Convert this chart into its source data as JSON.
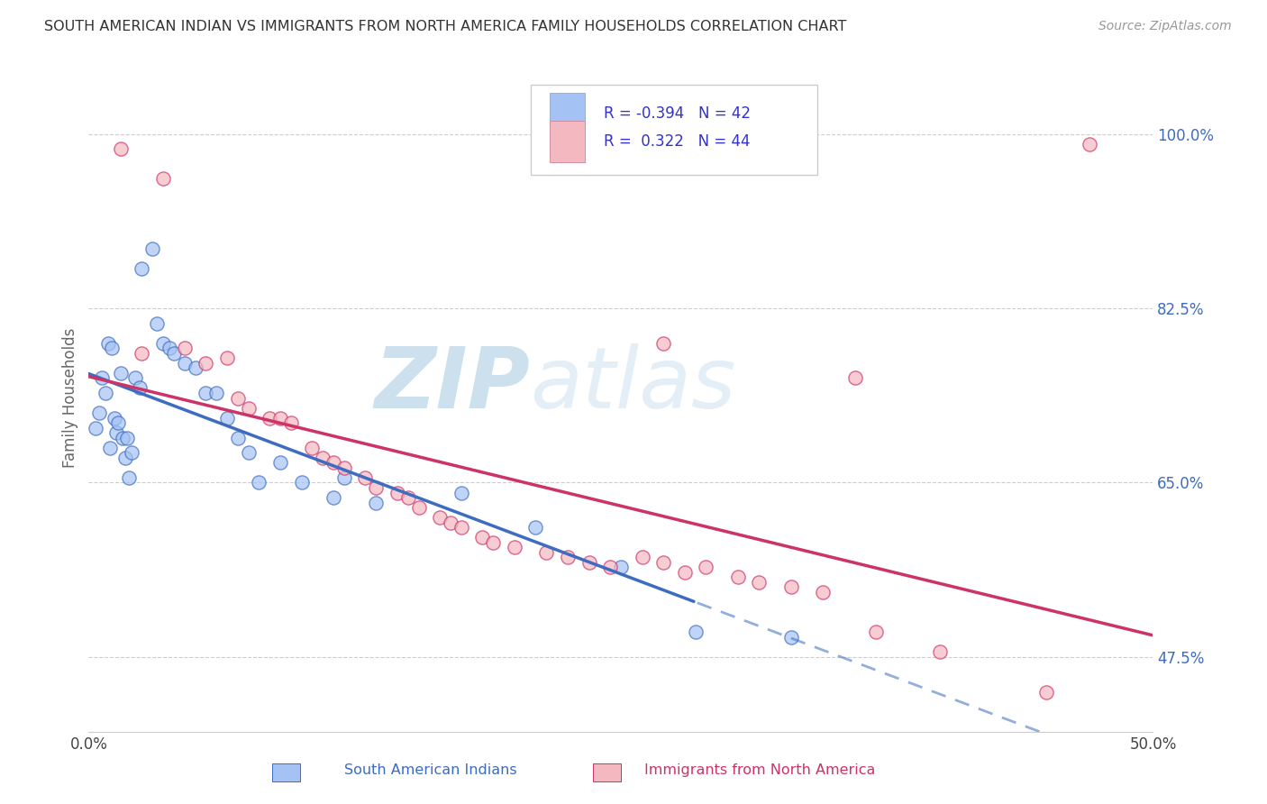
{
  "title": "SOUTH AMERICAN INDIAN VS IMMIGRANTS FROM NORTH AMERICA FAMILY HOUSEHOLDS CORRELATION CHART",
  "source": "Source: ZipAtlas.com",
  "ylabel": "Family Households",
  "ytick_labels": [
    "47.5%",
    "65.0%",
    "82.5%",
    "100.0%"
  ],
  "ytick_values": [
    47.5,
    65.0,
    82.5,
    100.0
  ],
  "legend_blue_r": "R = -0.394",
  "legend_blue_n": "N = 42",
  "legend_pink_r": "R =  0.322",
  "legend_pink_n": "N = 44",
  "blue_color": "#a4c2f4",
  "pink_color": "#f4b8c1",
  "blue_line_color": "#3d6cc0",
  "pink_line_color": "#cc3366",
  "blue_scatter": [
    [
      0.3,
      70.5
    ],
    [
      0.5,
      72.0
    ],
    [
      0.6,
      75.5
    ],
    [
      0.8,
      74.0
    ],
    [
      0.9,
      79.0
    ],
    [
      1.0,
      68.5
    ],
    [
      1.1,
      78.5
    ],
    [
      1.2,
      71.5
    ],
    [
      1.3,
      70.0
    ],
    [
      1.4,
      71.0
    ],
    [
      1.5,
      76.0
    ],
    [
      1.6,
      69.5
    ],
    [
      1.7,
      67.5
    ],
    [
      1.8,
      69.5
    ],
    [
      1.9,
      65.5
    ],
    [
      2.0,
      68.0
    ],
    [
      2.2,
      75.5
    ],
    [
      2.4,
      74.5
    ],
    [
      2.5,
      86.5
    ],
    [
      3.0,
      88.5
    ],
    [
      3.2,
      81.0
    ],
    [
      3.5,
      79.0
    ],
    [
      3.8,
      78.5
    ],
    [
      4.0,
      78.0
    ],
    [
      4.5,
      77.0
    ],
    [
      5.0,
      76.5
    ],
    [
      5.5,
      74.0
    ],
    [
      6.0,
      74.0
    ],
    [
      6.5,
      71.5
    ],
    [
      7.0,
      69.5
    ],
    [
      7.5,
      68.0
    ],
    [
      8.0,
      65.0
    ],
    [
      9.0,
      67.0
    ],
    [
      10.0,
      65.0
    ],
    [
      11.5,
      63.5
    ],
    [
      12.0,
      65.5
    ],
    [
      13.5,
      63.0
    ],
    [
      17.5,
      64.0
    ],
    [
      21.0,
      60.5
    ],
    [
      25.0,
      56.5
    ],
    [
      28.5,
      50.0
    ],
    [
      33.0,
      49.5
    ]
  ],
  "pink_scatter": [
    [
      1.5,
      98.5
    ],
    [
      3.5,
      95.5
    ],
    [
      2.5,
      78.0
    ],
    [
      4.5,
      78.5
    ],
    [
      5.5,
      77.0
    ],
    [
      6.5,
      77.5
    ],
    [
      7.5,
      72.5
    ],
    [
      7.0,
      73.5
    ],
    [
      8.5,
      71.5
    ],
    [
      9.0,
      71.5
    ],
    [
      9.5,
      71.0
    ],
    [
      10.5,
      68.5
    ],
    [
      11.0,
      67.5
    ],
    [
      11.5,
      67.0
    ],
    [
      12.0,
      66.5
    ],
    [
      13.0,
      65.5
    ],
    [
      13.5,
      64.5
    ],
    [
      14.5,
      64.0
    ],
    [
      15.0,
      63.5
    ],
    [
      15.5,
      62.5
    ],
    [
      16.5,
      61.5
    ],
    [
      17.0,
      61.0
    ],
    [
      17.5,
      60.5
    ],
    [
      18.5,
      59.5
    ],
    [
      19.0,
      59.0
    ],
    [
      20.0,
      58.5
    ],
    [
      21.5,
      58.0
    ],
    [
      22.5,
      57.5
    ],
    [
      23.5,
      57.0
    ],
    [
      24.5,
      56.5
    ],
    [
      26.0,
      57.5
    ],
    [
      27.0,
      57.0
    ],
    [
      28.0,
      56.0
    ],
    [
      29.0,
      56.5
    ],
    [
      30.5,
      55.5
    ],
    [
      31.5,
      55.0
    ],
    [
      33.0,
      54.5
    ],
    [
      34.5,
      54.0
    ],
    [
      37.0,
      50.0
    ],
    [
      40.0,
      48.0
    ],
    [
      45.0,
      44.0
    ],
    [
      27.0,
      79.0
    ],
    [
      36.0,
      75.5
    ],
    [
      47.0,
      99.0
    ]
  ],
  "xmin": 0,
  "xmax": 50,
  "ymin": 40,
  "ymax": 107,
  "watermark_zip": "ZIP",
  "watermark_atlas": "atlas",
  "background_color": "#ffffff",
  "grid_color": "#c8c8c8"
}
